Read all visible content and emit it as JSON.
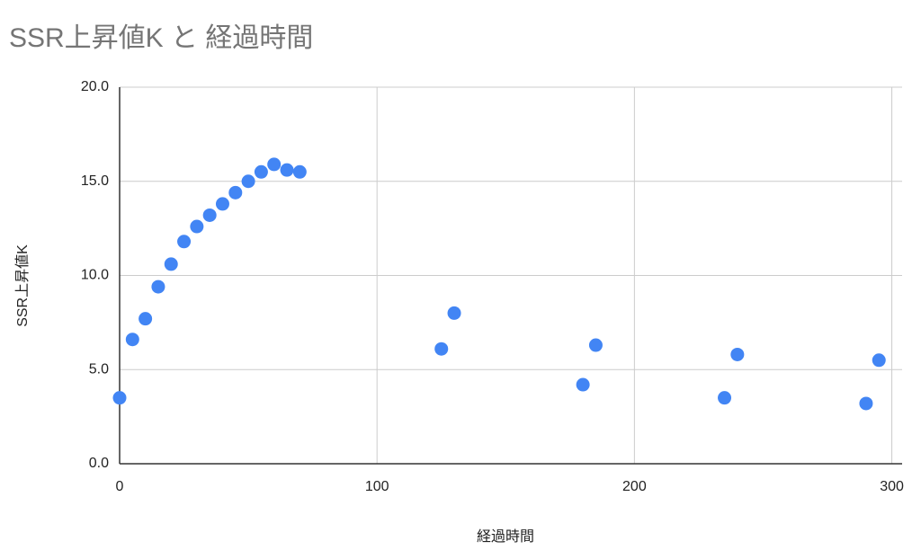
{
  "chart_data": {
    "type": "scatter",
    "title": "SSR上昇値K と 経過時間",
    "x_label": "経過時間",
    "y_label": "SSR上昇値K",
    "series": [
      {
        "name": "SSR上昇値K",
        "color": "#4285f4",
        "x": [
          0,
          5,
          10,
          15,
          20,
          25,
          30,
          35,
          40,
          45,
          50,
          55,
          60,
          65,
          70,
          125,
          130,
          180,
          185,
          235,
          240,
          290,
          295
        ],
        "values": [
          3.5,
          6.6,
          7.7,
          9.4,
          10.6,
          11.8,
          12.6,
          13.2,
          13.8,
          14.4,
          15.0,
          15.5,
          15.9,
          15.6,
          15.5,
          6.1,
          8.0,
          4.2,
          6.3,
          3.5,
          5.8,
          3.2,
          5.5
        ]
      }
    ],
    "xlim": [
      0,
      304
    ],
    "xticks": [
      0,
      100,
      200,
      300
    ],
    "ylim": [
      0,
      20
    ],
    "yticks": [
      {
        "value": 0,
        "label": "0.0"
      },
      {
        "value": 5,
        "label": "5.0"
      },
      {
        "value": 10,
        "label": "10.0"
      },
      {
        "value": 15,
        "label": "15.0"
      },
      {
        "value": 20,
        "label": "20.0"
      }
    ],
    "grid": true
  }
}
